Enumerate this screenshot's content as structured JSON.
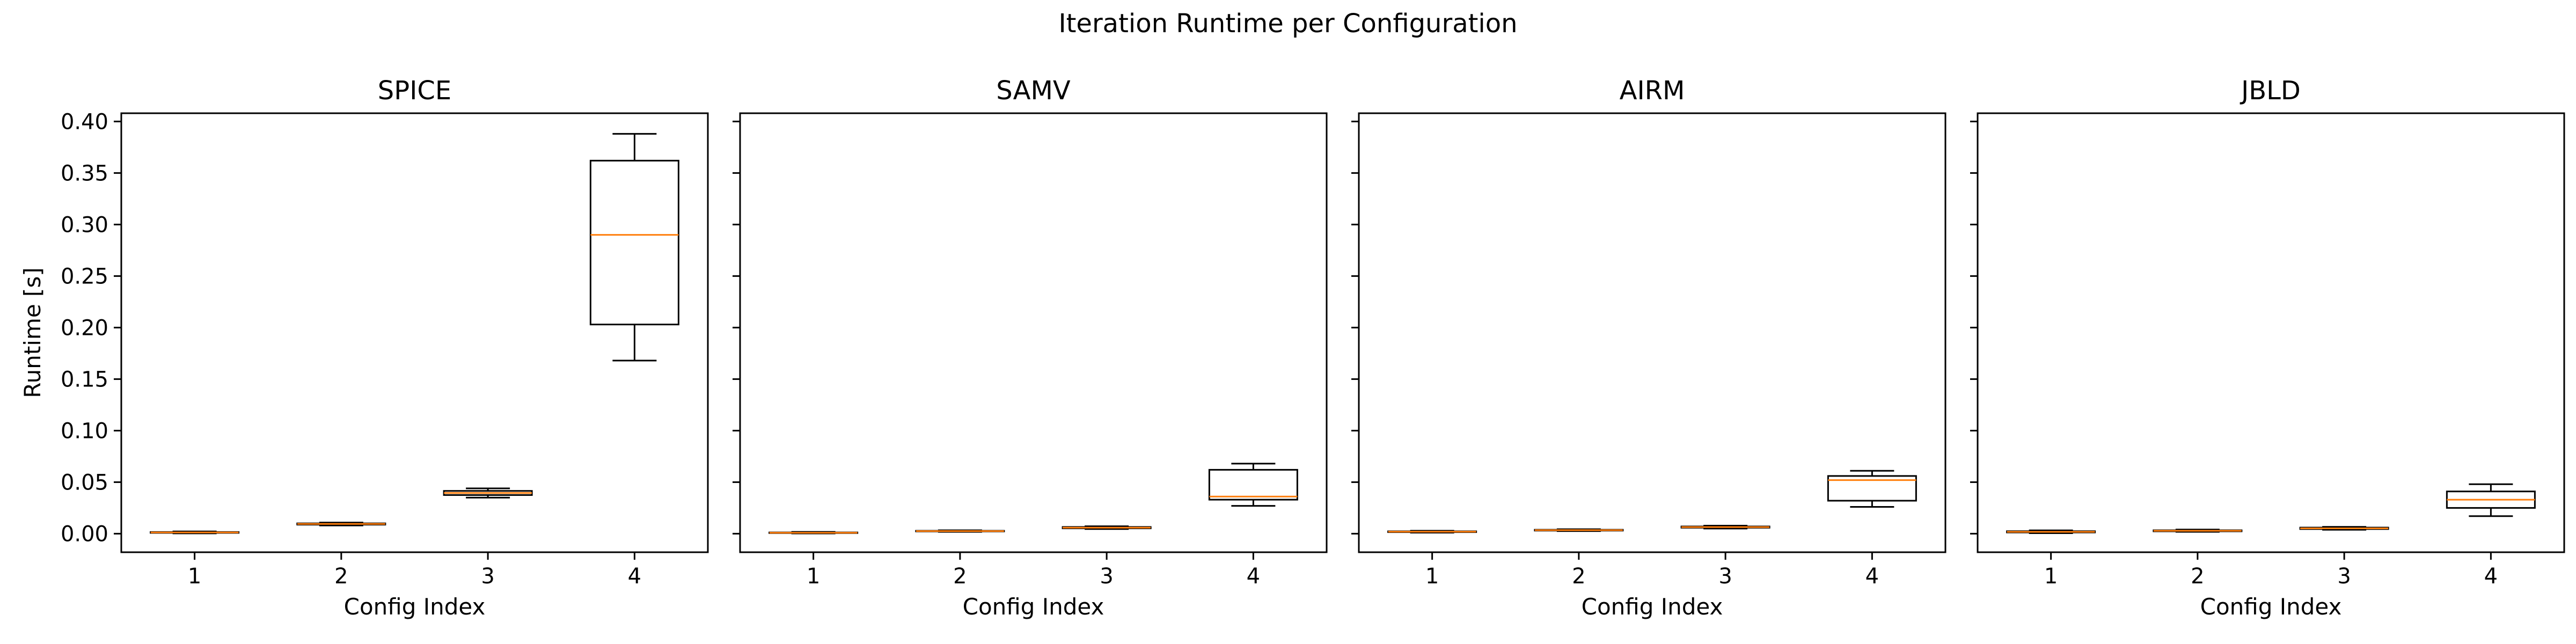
{
  "chart_data": {
    "type": "boxplot",
    "title": "Iteration Runtime per Configuration",
    "ylabel": "Runtime [s]",
    "xlabel": "Config Index",
    "ylim": [
      -0.018,
      0.408
    ],
    "yticks": [
      0.0,
      0.05,
      0.1,
      0.15,
      0.2,
      0.25,
      0.3,
      0.35,
      0.4
    ],
    "ytick_labels": [
      "0.00",
      "0.05",
      "0.10",
      "0.15",
      "0.20",
      "0.25",
      "0.30",
      "0.35",
      "0.40"
    ],
    "categories": [
      "1",
      "2",
      "3",
      "4"
    ],
    "sharey": true,
    "grid": false,
    "colors": {
      "box": "#000000",
      "median": "#ff7f0e"
    },
    "panels": [
      {
        "title": "SPICE",
        "boxes": [
          {
            "whislo": 0.0003,
            "q1": 0.0008,
            "med": 0.0012,
            "q3": 0.0016,
            "whishi": 0.0022
          },
          {
            "whislo": 0.008,
            "q1": 0.0088,
            "med": 0.0095,
            "q3": 0.01,
            "whishi": 0.0108
          },
          {
            "whislo": 0.035,
            "q1": 0.0375,
            "med": 0.0395,
            "q3": 0.0415,
            "whishi": 0.044
          },
          {
            "whislo": 0.168,
            "q1": 0.203,
            "med": 0.29,
            "q3": 0.362,
            "whishi": 0.388
          }
        ]
      },
      {
        "title": "SAMV",
        "boxes": [
          {
            "whislo": 0.0002,
            "q1": 0.0006,
            "med": 0.0009,
            "q3": 0.0012,
            "whishi": 0.0017
          },
          {
            "whislo": 0.0018,
            "q1": 0.0022,
            "med": 0.0025,
            "q3": 0.0028,
            "whishi": 0.0033
          },
          {
            "whislo": 0.0045,
            "q1": 0.0052,
            "med": 0.0058,
            "q3": 0.0065,
            "whishi": 0.0072
          },
          {
            "whislo": 0.027,
            "q1": 0.033,
            "med": 0.036,
            "q3": 0.062,
            "whishi": 0.068
          }
        ]
      },
      {
        "title": "AIRM",
        "boxes": [
          {
            "whislo": 0.001,
            "q1": 0.0015,
            "med": 0.0019,
            "q3": 0.0023,
            "whishi": 0.0028
          },
          {
            "whislo": 0.0025,
            "q1": 0.003,
            "med": 0.0034,
            "q3": 0.0038,
            "whishi": 0.0043
          },
          {
            "whislo": 0.005,
            "q1": 0.0058,
            "med": 0.0064,
            "q3": 0.007,
            "whishi": 0.0078
          },
          {
            "whislo": 0.026,
            "q1": 0.032,
            "med": 0.052,
            "q3": 0.056,
            "whishi": 0.061
          }
        ]
      },
      {
        "title": "JBLD",
        "boxes": [
          {
            "whislo": 0.0005,
            "q1": 0.0012,
            "med": 0.0018,
            "q3": 0.0024,
            "whishi": 0.0032
          },
          {
            "whislo": 0.0018,
            "q1": 0.0023,
            "med": 0.0028,
            "q3": 0.0033,
            "whishi": 0.004
          },
          {
            "whislo": 0.0038,
            "q1": 0.0045,
            "med": 0.0052,
            "q3": 0.0059,
            "whishi": 0.0066
          },
          {
            "whislo": 0.017,
            "q1": 0.025,
            "med": 0.033,
            "q3": 0.041,
            "whishi": 0.048
          }
        ]
      }
    ]
  }
}
